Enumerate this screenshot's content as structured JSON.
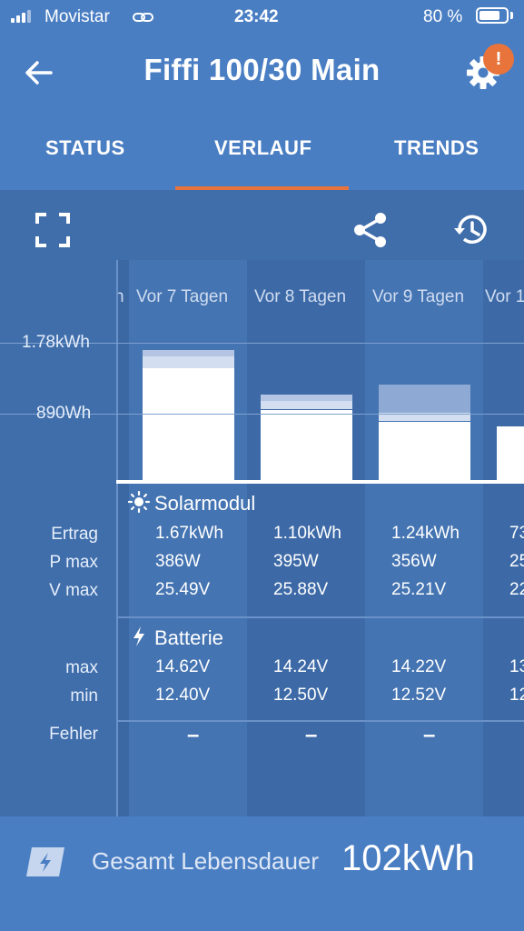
{
  "status_bar": {
    "carrier": "Movistar",
    "time": "23:42",
    "battery_text": "80 %",
    "battery_level": 0.8
  },
  "header": {
    "title": "Fiffi 100/30 Main",
    "notification_badge": "!"
  },
  "tabs": [
    {
      "label": "STATUS",
      "active": false
    },
    {
      "label": "VERLAUF",
      "active": true
    },
    {
      "label": "TRENDS",
      "active": false
    }
  ],
  "toolbar": {
    "icons": [
      "fullscreen-icon",
      "share-icon",
      "history-icon"
    ]
  },
  "chart": {
    "y_labels": [
      "1.78kWh",
      "890Wh"
    ],
    "columns": [
      {
        "header": "n"
      },
      {
        "header": "Vor 7 Tagen"
      },
      {
        "header": "Vor 8 Tagen"
      },
      {
        "header": "Vor 9 Tagen"
      },
      {
        "header": "Vor 1"
      }
    ]
  },
  "solar": {
    "title": "Solarmodul",
    "rows": [
      {
        "label": "Ertrag",
        "values": [
          "1.67kWh",
          "1.10kWh",
          "1.24kWh",
          "73"
        ]
      },
      {
        "label": "P max",
        "values": [
          "386W",
          "395W",
          "356W",
          "25"
        ]
      },
      {
        "label": "V max",
        "values": [
          "25.49V",
          "25.88V",
          "25.21V",
          "22"
        ]
      }
    ]
  },
  "battery": {
    "title": "Batterie",
    "rows": [
      {
        "label": "max",
        "values": [
          "14.62V",
          "14.24V",
          "14.22V",
          "13"
        ]
      },
      {
        "label": "min",
        "values": [
          "12.40V",
          "12.50V",
          "12.52V",
          "12"
        ]
      }
    ]
  },
  "errors": {
    "label": "Fehler",
    "values": [
      "–",
      "–",
      "–"
    ]
  },
  "footer": {
    "label": "Gesamt Lebensdauer",
    "value": "102kWh"
  },
  "colors": {
    "header_bg": "#4a7ec3",
    "panel_bg": "#3f6eab",
    "tab_indicator": "#e8743b",
    "badge": "#e8743b"
  }
}
